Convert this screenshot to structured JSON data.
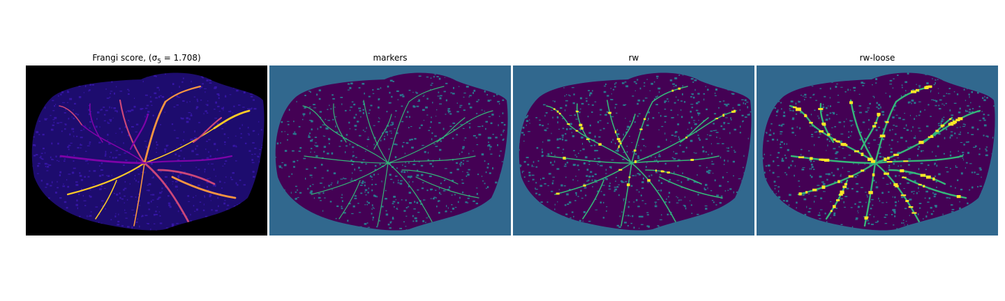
{
  "figure": {
    "panels": [
      {
        "title": "Frangi score, (σ",
        "title_sub": "5",
        "title_eq": " = 1.708)",
        "colormap": "plasma",
        "background": "#000000",
        "tissue": "#1d0c6e",
        "texture": "#3516a4",
        "vessel_colors": [
          "#7e03a8",
          "#cc4778",
          "#f89540",
          "#fdca26"
        ]
      },
      {
        "title": "markers",
        "colormap": "viridis",
        "background": "#31688e",
        "tissue": "#440154",
        "texture": "#2a788e",
        "vessel_colors": [
          "#35b779"
        ]
      },
      {
        "title": "rw",
        "colormap": "viridis",
        "background": "#31688e",
        "tissue": "#440154",
        "texture": "#2a788e",
        "vessel_colors": [
          "#35b779",
          "#fde725"
        ]
      },
      {
        "title": "rw-loose",
        "colormap": "viridis",
        "background": "#31688e",
        "tissue": "#440154",
        "texture": "#2a788e",
        "vessel_colors": [
          "#35b779",
          "#fde725"
        ]
      }
    ]
  }
}
